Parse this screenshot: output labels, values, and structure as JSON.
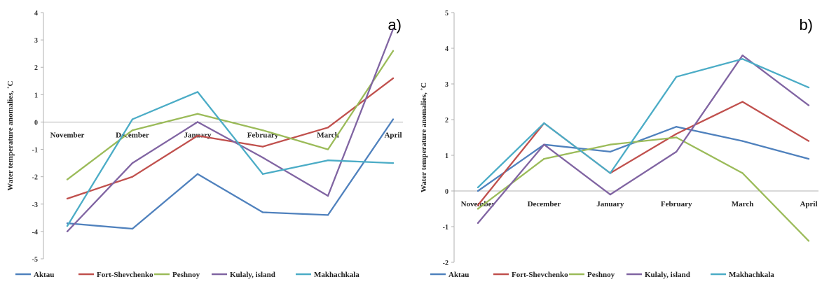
{
  "chart_data": [
    {
      "type": "line",
      "panel_label": "a)",
      "ylabel": "Water temperature anomalies, ˚C",
      "xlabel": "",
      "ylim": [
        -5,
        4
      ],
      "yticks": [
        4,
        3,
        2,
        1,
        0,
        -1,
        -2,
        -3,
        -4,
        -5
      ],
      "grid": false,
      "legend_position": "bottom",
      "categories": [
        "November",
        "December",
        "January",
        "February",
        "March",
        "April"
      ],
      "series": [
        {
          "name": "Aktau",
          "color": "#4f81bd",
          "values": [
            -3.7,
            -3.9,
            -1.9,
            -3.3,
            -3.4,
            0.1
          ]
        },
        {
          "name": "Fort-Shevchenko",
          "color": "#c0504d",
          "values": [
            -2.8,
            -2.0,
            -0.5,
            -0.9,
            -0.2,
            1.6
          ]
        },
        {
          "name": "Peshnoy",
          "color": "#9bbb59",
          "values": [
            -2.1,
            -0.3,
            0.3,
            -0.3,
            -1.0,
            2.6
          ]
        },
        {
          "name": "Kulaly, island",
          "color": "#8064a2",
          "values": [
            -4.0,
            -1.5,
            0.0,
            -1.3,
            -2.7,
            3.4
          ]
        },
        {
          "name": "Makhachkala",
          "color": "#4bacc6",
          "values": [
            -3.8,
            0.1,
            1.1,
            -1.9,
            -1.4,
            -1.5
          ]
        }
      ]
    },
    {
      "type": "line",
      "panel_label": "b)",
      "ylabel": "Water temperature anomalies, ˚C",
      "xlabel": "",
      "ylim": [
        -2,
        5
      ],
      "yticks": [
        5,
        4,
        3,
        2,
        1,
        0,
        -1,
        -2
      ],
      "grid": false,
      "legend_position": "bottom",
      "categories": [
        "November",
        "December",
        "January",
        "February",
        "March",
        "April"
      ],
      "series": [
        {
          "name": "Aktau",
          "color": "#4f81bd",
          "values": [
            0.0,
            1.3,
            1.1,
            1.8,
            1.4,
            0.9
          ]
        },
        {
          "name": "Fort-Shevchenko",
          "color": "#c0504d",
          "values": [
            -0.4,
            1.9,
            0.5,
            1.6,
            2.5,
            1.4
          ]
        },
        {
          "name": "Peshnoy",
          "color": "#9bbb59",
          "values": [
            -0.5,
            0.9,
            1.3,
            1.5,
            0.5,
            -1.4
          ]
        },
        {
          "name": "Kulaly, island",
          "color": "#8064a2",
          "values": [
            -0.9,
            1.3,
            -0.1,
            1.1,
            3.8,
            2.4
          ]
        },
        {
          "name": "Makhachkala",
          "color": "#4bacc6",
          "values": [
            0.1,
            1.9,
            0.5,
            3.2,
            3.7,
            2.9
          ]
        }
      ]
    }
  ]
}
